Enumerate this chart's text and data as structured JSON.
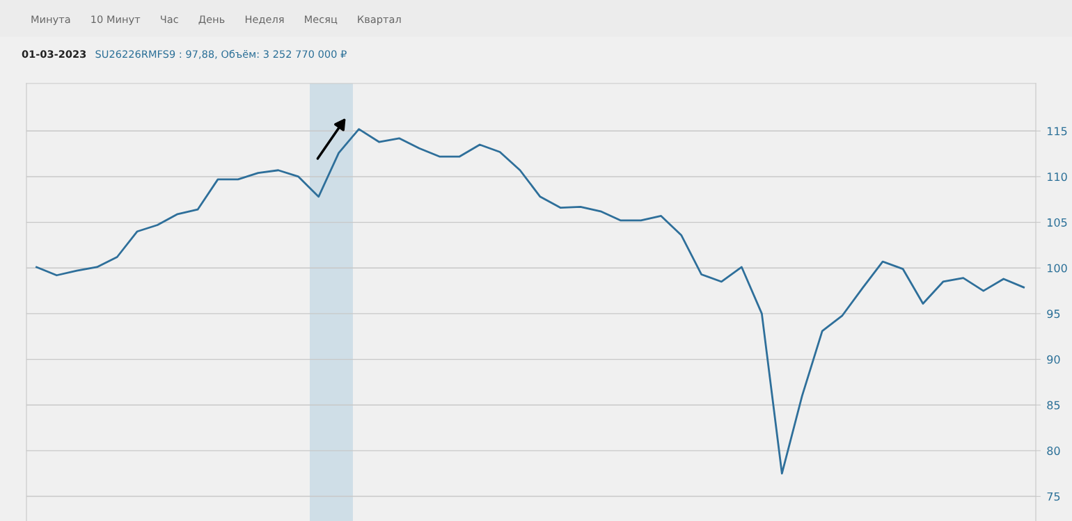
{
  "chart_data": {
    "type": "line",
    "title": "01-03-2023",
    "subtitle": "SU26226RMFS9 : 97,88, Объём: 3 252 770 000 ₽",
    "annotations": [
      "Минута",
      "10 Минут",
      "Час",
      "День",
      "Неделя",
      "Месяц",
      "Квартал"
    ],
    "categories": [
      null,
      null,
      null,
      null,
      null,
      null,
      null,
      null,
      null,
      null,
      null,
      null,
      null,
      null,
      null,
      null,
      null,
      null,
      null,
      null,
      null,
      null,
      null,
      null,
      null,
      null,
      null,
      null,
      null,
      null,
      null,
      null,
      null,
      null,
      null,
      null,
      null,
      null,
      null,
      null,
      null,
      null,
      null,
      null,
      null,
      null,
      null,
      null,
      null,
      null
    ],
    "series": [
      {
        "color": "#2e6f9a",
        "values": [
          100.1,
          99.2,
          99.7,
          100.1,
          101.2,
          104.0,
          104.7,
          105.9,
          106.4,
          109.7,
          109.7,
          110.4,
          110.7,
          110.0,
          107.8,
          112.6,
          115.2,
          113.8,
          114.2,
          113.1,
          112.2,
          112.2,
          113.5,
          112.7,
          110.7,
          107.8,
          106.6,
          106.7,
          106.2,
          105.2,
          105.2,
          105.7,
          103.6,
          99.3,
          98.5,
          100.1,
          95.0,
          77.5,
          86.0,
          93.1,
          94.8,
          97.8,
          100.7,
          99.9,
          96.1,
          98.5,
          98.9,
          97.5,
          98.8,
          97.88
        ]
      }
    ],
    "ylim": [
      72.3,
      120.2
    ],
    "yticks": [
      75,
      80,
      85,
      90,
      95,
      100,
      105,
      110,
      115
    ],
    "grid": "y",
    "legend": false,
    "marker": "none",
    "line_style": "solid"
  }
}
